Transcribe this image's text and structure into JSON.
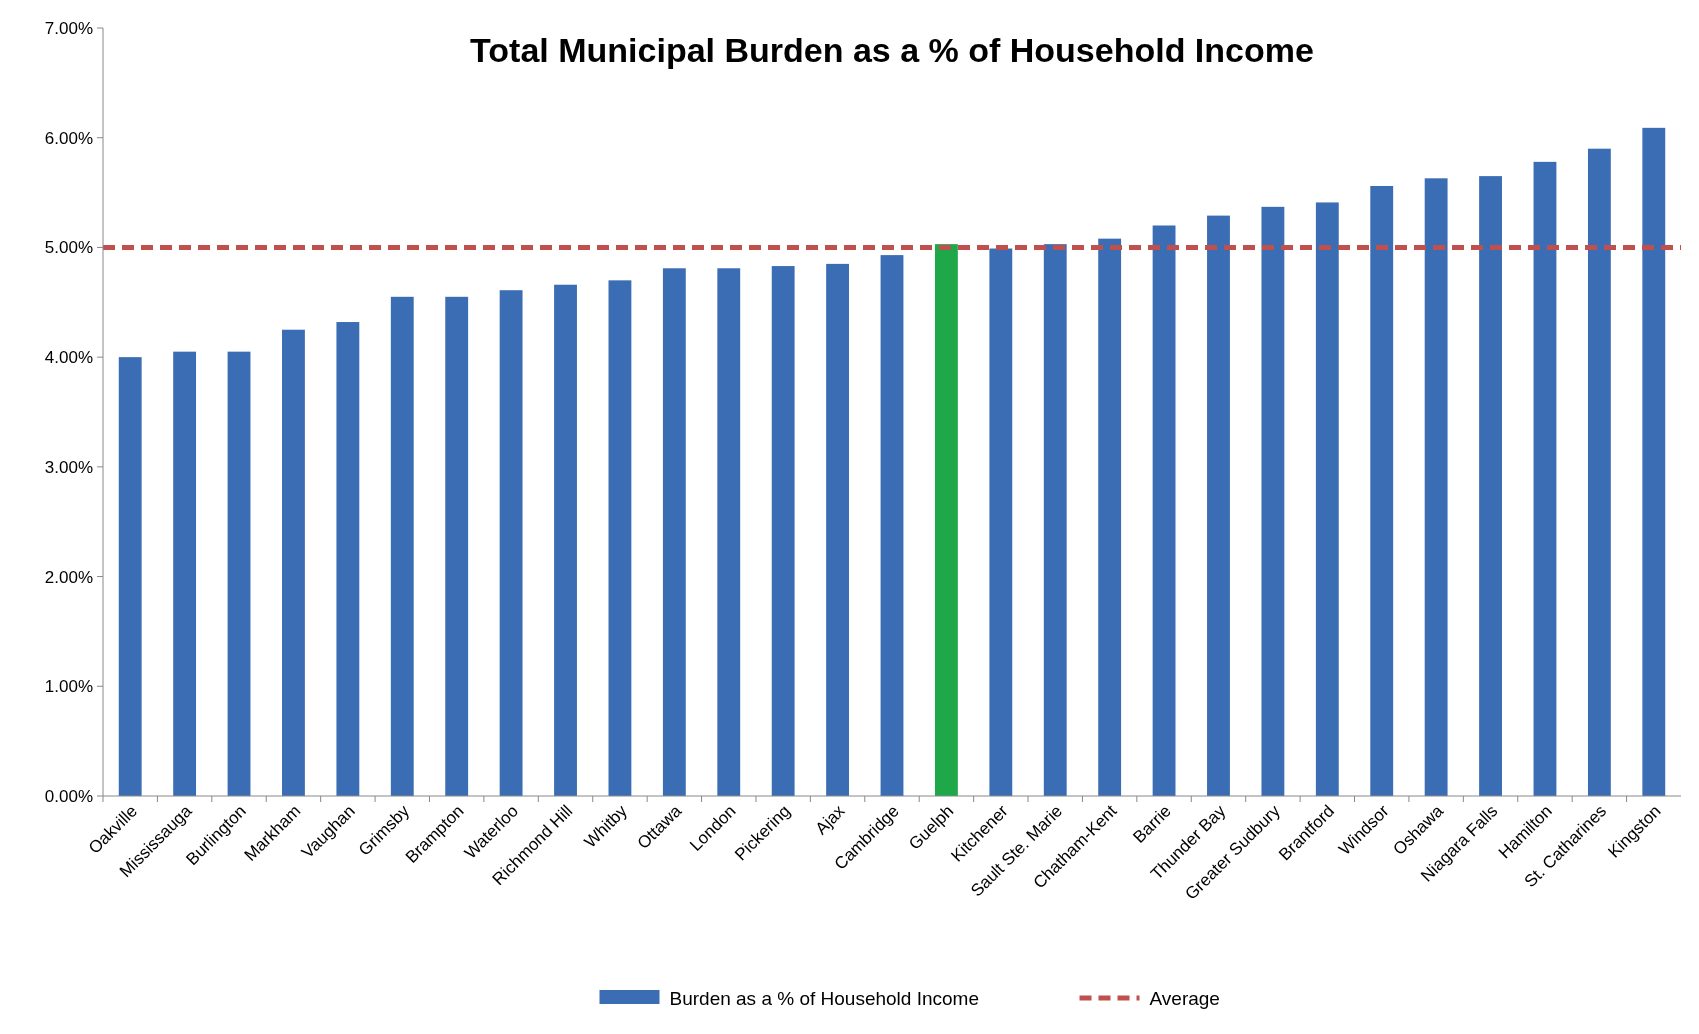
{
  "chart_data": {
    "type": "bar",
    "title": "Total Municipal Burden as a % of Household Income",
    "categories": [
      "Oakville",
      "Mississauga",
      "Burlington",
      "Markham",
      "Vaughan",
      "Grimsby",
      "Brampton",
      "Waterloo",
      "Richmond Hill",
      "Whitby",
      "Ottawa",
      "London",
      "Pickering",
      "Ajax",
      "Cambridge",
      "Guelph",
      "Kitchener",
      "Sault Ste. Marie",
      "Chatham-Kent",
      "Barrie",
      "Thunder Bay",
      "Greater Sudbury",
      "Brantford",
      "Windsor",
      "Oshawa",
      "Niagara Falls",
      "Hamilton",
      "St. Catharines",
      "Kingston"
    ],
    "series": [
      {
        "name": "Burden as a % of Household Income",
        "color": "#3a6db3",
        "values": [
          4.0,
          4.05,
          4.05,
          4.25,
          4.32,
          4.55,
          4.55,
          4.61,
          4.66,
          4.7,
          4.81,
          4.81,
          4.83,
          4.85,
          4.93,
          5.03,
          4.99,
          5.03,
          5.08,
          5.2,
          5.29,
          5.37,
          5.41,
          5.56,
          5.63,
          5.65,
          5.78,
          5.9,
          6.09
        ],
        "colors": [
          "#3a6db3",
          "#3a6db3",
          "#3a6db3",
          "#3a6db3",
          "#3a6db3",
          "#3a6db3",
          "#3a6db3",
          "#3a6db3",
          "#3a6db3",
          "#3a6db3",
          "#3a6db3",
          "#3a6db3",
          "#3a6db3",
          "#3a6db3",
          "#3a6db3",
          "#1fa84a",
          "#3a6db3",
          "#3a6db3",
          "#3a6db3",
          "#3a6db3",
          "#3a6db3",
          "#3a6db3",
          "#3a6db3",
          "#3a6db3",
          "#3a6db3",
          "#3a6db3",
          "#3a6db3",
          "#3a6db3",
          "#3a6db3"
        ]
      }
    ],
    "ylim": [
      0,
      7
    ],
    "yticks": [
      {
        "value": 0,
        "label": "0.00%"
      },
      {
        "value": 1,
        "label": "1.00%"
      },
      {
        "value": 2,
        "label": "2.00%"
      },
      {
        "value": 3,
        "label": "3.00%"
      },
      {
        "value": 4,
        "label": "4.00%"
      },
      {
        "value": 5,
        "label": "5.00%"
      },
      {
        "value": 6,
        "label": "6.00%"
      },
      {
        "value": 7,
        "label": "7.00%"
      }
    ],
    "ref_lines": [
      {
        "axis": "y",
        "value": 5,
        "label": "Average",
        "color": "#c0504d",
        "line_style": "dashed"
      }
    ],
    "grid": false,
    "legend": "bottom"
  }
}
